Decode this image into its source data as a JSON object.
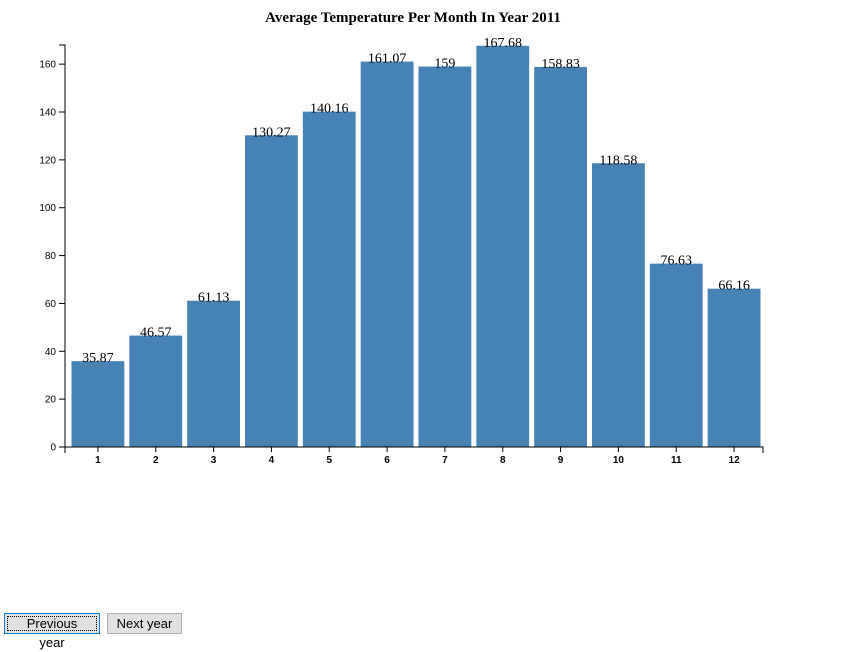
{
  "chart_data": {
    "type": "bar",
    "title": "Average Temperature Per Month In Year 2011",
    "categories": [
      "1",
      "2",
      "3",
      "4",
      "5",
      "6",
      "7",
      "8",
      "9",
      "10",
      "11",
      "12"
    ],
    "values": [
      35.87,
      46.57,
      61.13,
      130.27,
      140.16,
      161.07,
      159,
      167.68,
      158.83,
      118.58,
      76.63,
      66.16
    ],
    "data_labels": [
      "35.87",
      "46.57",
      "61.13",
      "130.27",
      "140.16",
      "161.07",
      "159",
      "167.68",
      "158.83",
      "118.58",
      "76.63",
      "66.16"
    ],
    "y_ticks": [
      0,
      20,
      40,
      60,
      80,
      100,
      120,
      140,
      160
    ],
    "ylim": [
      0,
      168
    ],
    "color": "#4682b4",
    "grid": false
  },
  "controls": {
    "previous_label": "Previous year",
    "next_label": "Next year"
  }
}
